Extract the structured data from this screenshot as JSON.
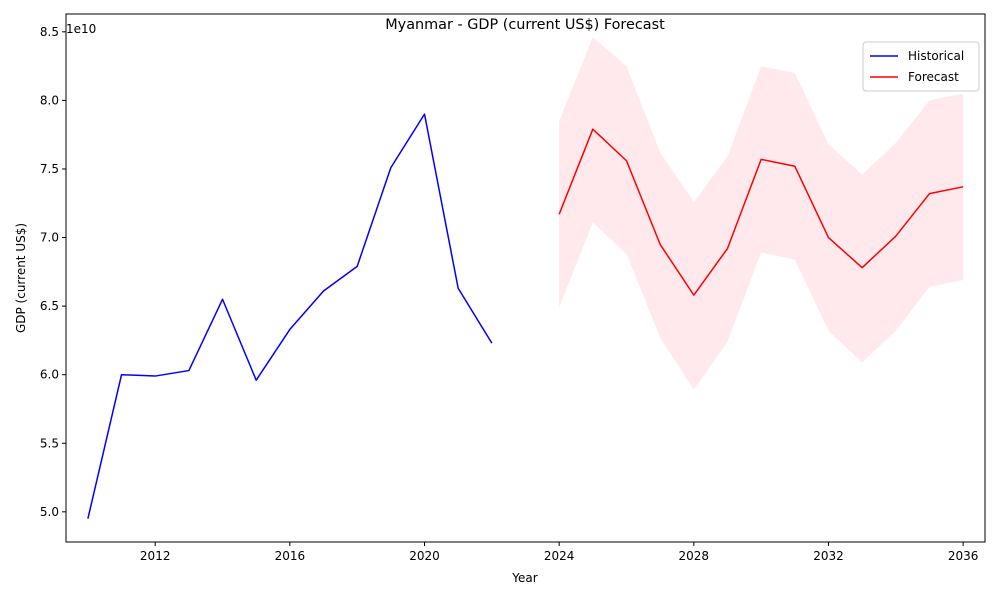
{
  "chart_data": {
    "type": "line",
    "title": "Myanmar - GDP (current US$) Forecast",
    "xlabel": "Year",
    "ylabel": "GDP (current US$)",
    "y_offset_text": "1e10",
    "y_scale_factor": 10000000000,
    "xlim": [
      2009.35,
      2036.65
    ],
    "ylim": [
      47800000000,
      86300000000
    ],
    "x_ticks": [
      2012,
      2016,
      2020,
      2024,
      2028,
      2032,
      2036
    ],
    "x_tick_labels": [
      "2012",
      "2016",
      "2020",
      "2024",
      "2028",
      "2032",
      "2036"
    ],
    "y_ticks": [
      50000000000,
      55000000000,
      60000000000,
      65000000000,
      70000000000,
      75000000000,
      80000000000,
      85000000000
    ],
    "y_tick_labels": [
      "5.0",
      "5.5",
      "6.0",
      "6.5",
      "7.0",
      "7.5",
      "8.0",
      "8.5"
    ],
    "grid": false,
    "legend_position": "top-right",
    "series": [
      {
        "name": "Historical",
        "color": "#0000ff",
        "x": [
          2010,
          2011,
          2012,
          2013,
          2014,
          2015,
          2016,
          2017,
          2018,
          2019,
          2020,
          2021,
          2022
        ],
        "values": [
          49500000000,
          60000000000,
          59900000000,
          60300000000,
          65500000000,
          59600000000,
          63300000000,
          66100000000,
          67900000000,
          75100000000,
          79000000000,
          66300000000,
          62300000000
        ]
      },
      {
        "name": "Forecast",
        "color": "#ff0000",
        "x": [
          2024,
          2025,
          2026,
          2027,
          2028,
          2029,
          2030,
          2031,
          2032,
          2033,
          2034,
          2035,
          2036
        ],
        "values": [
          71700000000,
          77900000000,
          75600000000,
          69500000000,
          65800000000,
          69200000000,
          75700000000,
          75200000000,
          70000000000,
          67800000000,
          70100000000,
          73200000000,
          73700000000
        ]
      }
    ],
    "confidence_band": {
      "color": "#ffc0cb",
      "opacity": 0.35,
      "x": [
        2024,
        2025,
        2026,
        2027,
        2028,
        2029,
        2030,
        2031,
        2032,
        2033,
        2034,
        2035,
        2036
      ],
      "upper": [
        78500000000,
        84600000000,
        82500000000,
        76200000000,
        72600000000,
        75900000000,
        82500000000,
        82000000000,
        76800000000,
        74600000000,
        76900000000,
        80000000000,
        80500000000
      ],
      "lower": [
        64900000000,
        71100000000,
        68800000000,
        62700000000,
        58900000000,
        62400000000,
        68900000000,
        68400000000,
        63200000000,
        60900000000,
        63200000000,
        66400000000,
        66900000000
      ]
    }
  }
}
